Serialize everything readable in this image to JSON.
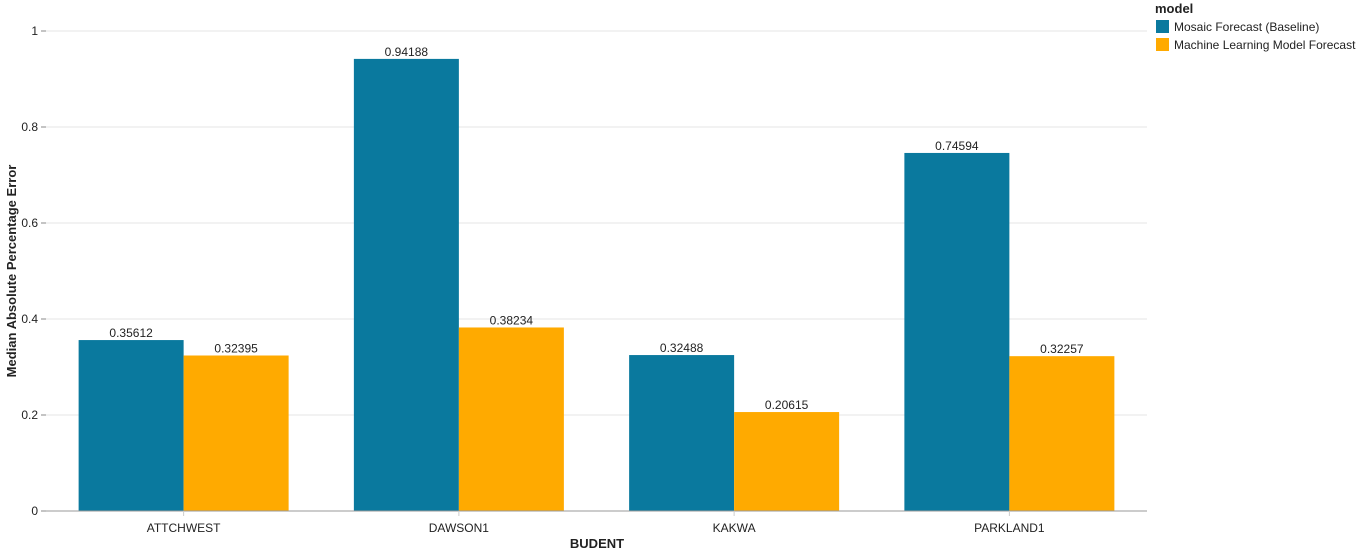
{
  "chart_data": {
    "type": "bar",
    "title": "",
    "xlabel": "BUDENT",
    "ylabel": "Median Absolute Percentage Error",
    "ylim": [
      0,
      1
    ],
    "yticks": [
      0,
      0.2,
      0.4,
      0.6,
      0.8,
      1
    ],
    "ytick_labels": [
      "0",
      "0.2",
      "0.4",
      "0.6",
      "0.8",
      "1"
    ],
    "grid": true,
    "categories": [
      "ATTCHWEST",
      "DAWSON1",
      "KAKWA",
      "PARKLAND1"
    ],
    "series": [
      {
        "name": "Mosaic Forecast (Baseline)",
        "color": "#0a799e",
        "values": [
          0.35612,
          0.94188,
          0.32488,
          0.74594
        ],
        "labels": [
          "0.35612",
          "0.94188",
          "0.32488",
          "0.74594"
        ]
      },
      {
        "name": "Machine Learning Model Forecast",
        "color": "#ffaa00",
        "values": [
          0.32395,
          0.38234,
          0.20615,
          0.32257
        ],
        "labels": [
          "0.32395",
          "0.38234",
          "0.20615",
          "0.32257"
        ]
      }
    ],
    "legend": {
      "title": "model",
      "placement": "top-right"
    }
  }
}
